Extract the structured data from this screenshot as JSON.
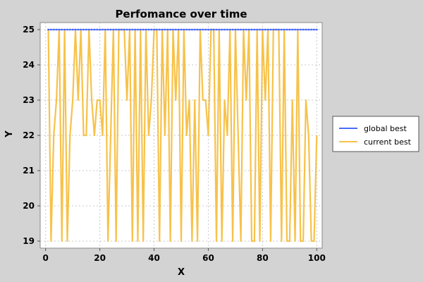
{
  "chart_data": {
    "type": "line",
    "title": "Perfomance over time",
    "xlabel": "X",
    "ylabel": "Y",
    "xlim": [
      -2,
      102
    ],
    "ylim": [
      18.8,
      25.2
    ],
    "x_ticks": [
      "0",
      "20",
      "40",
      "60",
      "80",
      "100"
    ],
    "y_ticks": [
      "19",
      "20",
      "21",
      "22",
      "23",
      "24",
      "25"
    ],
    "grid": true,
    "legend_position": "right",
    "x": [
      1,
      2,
      3,
      4,
      5,
      6,
      7,
      8,
      9,
      10,
      11,
      12,
      13,
      14,
      15,
      16,
      17,
      18,
      19,
      20,
      21,
      22,
      23,
      24,
      25,
      26,
      27,
      28,
      29,
      30,
      31,
      32,
      33,
      34,
      35,
      36,
      37,
      38,
      39,
      40,
      41,
      42,
      43,
      44,
      45,
      46,
      47,
      48,
      49,
      50,
      51,
      52,
      53,
      54,
      55,
      56,
      57,
      58,
      59,
      60,
      61,
      62,
      63,
      64,
      65,
      66,
      67,
      68,
      69,
      70,
      71,
      72,
      73,
      74,
      75,
      76,
      77,
      78,
      79,
      80,
      81,
      82,
      83,
      84,
      85,
      86,
      87,
      88,
      89,
      90,
      91,
      92,
      93,
      94,
      95,
      96,
      97,
      98,
      99,
      100
    ],
    "series": [
      {
        "name": "global best",
        "color": "#4a6cf7",
        "values": [
          25,
          25,
          25,
          25,
          25,
          25,
          25,
          25,
          25,
          25,
          25,
          25,
          25,
          25,
          25,
          25,
          25,
          25,
          25,
          25,
          25,
          25,
          25,
          25,
          25,
          25,
          25,
          25,
          25,
          25,
          25,
          25,
          25,
          25,
          25,
          25,
          25,
          25,
          25,
          25,
          25,
          25,
          25,
          25,
          25,
          25,
          25,
          25,
          25,
          25,
          25,
          25,
          25,
          25,
          25,
          25,
          25,
          25,
          25,
          25,
          25,
          25,
          25,
          25,
          25,
          25,
          25,
          25,
          25,
          25,
          25,
          25,
          25,
          25,
          25,
          25,
          25,
          25,
          25,
          25,
          25,
          25,
          25,
          25,
          25,
          25,
          25,
          25,
          25,
          25,
          25,
          25,
          25,
          25,
          25,
          25,
          25,
          25,
          25,
          25
        ]
      },
      {
        "name": "current best",
        "color": "#f7c24a",
        "values": [
          25,
          19,
          22,
          23,
          25,
          19,
          25,
          19,
          22,
          23,
          25,
          23,
          25,
          22,
          22,
          25,
          23,
          22,
          23,
          23,
          22,
          25,
          19,
          22,
          25,
          19,
          25,
          25,
          25,
          23,
          25,
          19,
          25,
          19,
          25,
          19,
          25,
          22,
          23,
          25,
          25,
          19,
          25,
          22,
          25,
          19,
          25,
          23,
          25,
          19,
          25,
          22,
          23,
          19,
          23,
          19,
          25,
          23,
          23,
          22,
          25,
          25,
          19,
          25,
          19,
          23,
          22,
          25,
          19,
          25,
          22,
          19,
          25,
          23,
          25,
          19,
          19,
          25,
          19,
          25,
          23,
          25,
          19,
          25,
          25,
          25,
          19,
          25,
          19,
          19,
          23,
          19,
          25,
          19,
          19,
          23,
          22,
          19,
          19,
          22
        ]
      }
    ]
  }
}
